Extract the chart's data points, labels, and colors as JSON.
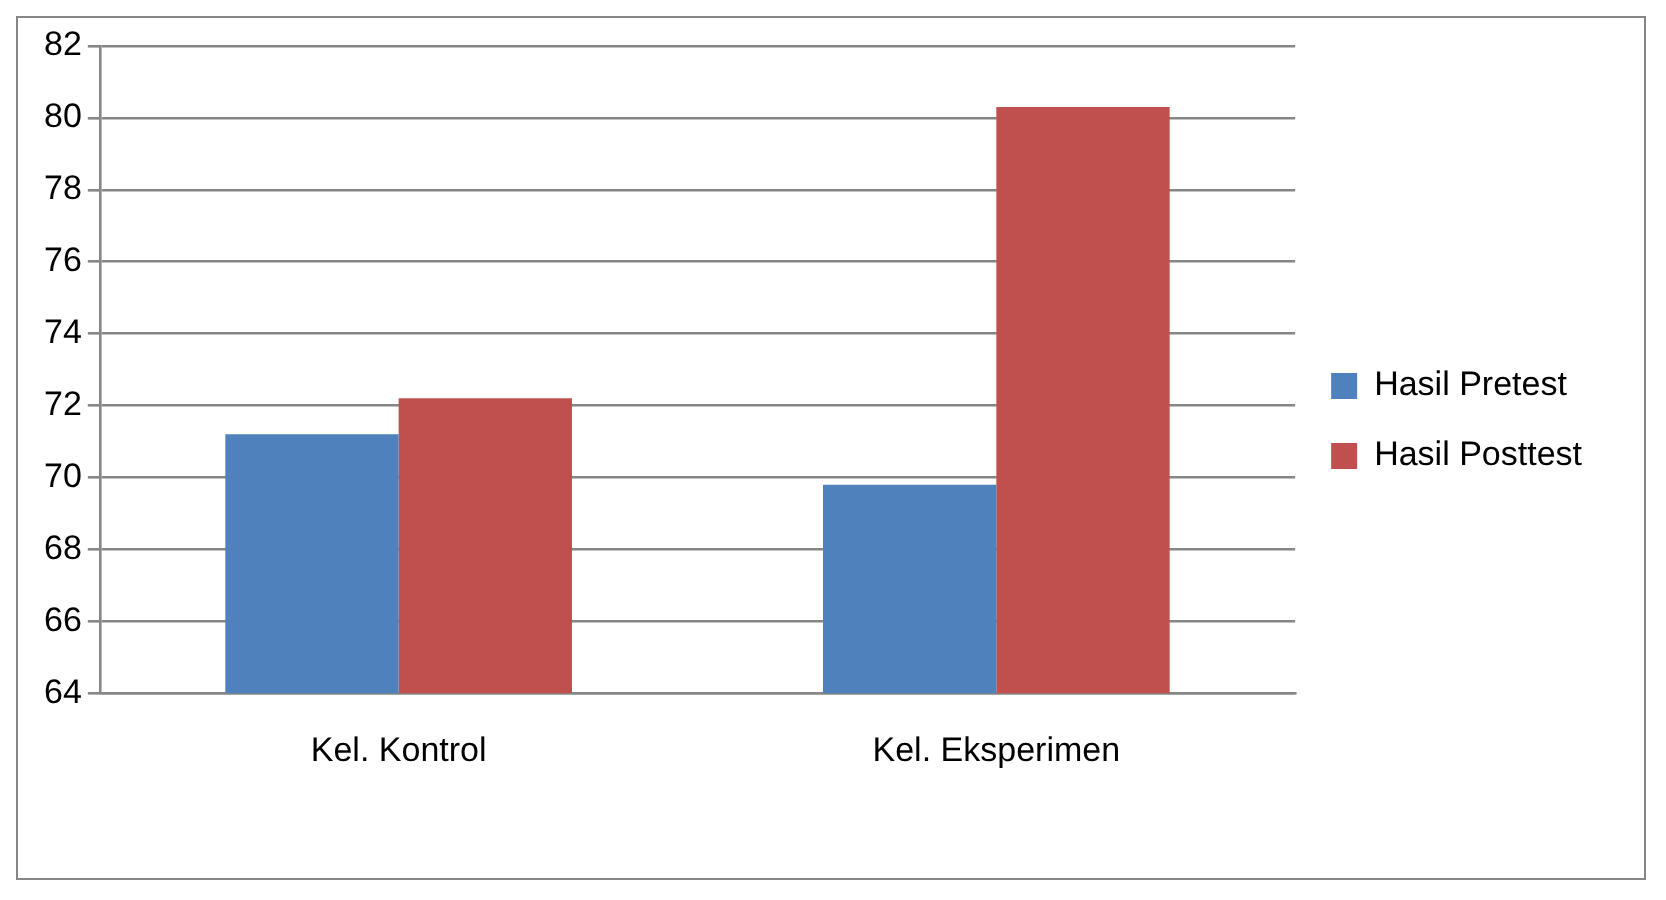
{
  "chart_data": {
    "type": "bar",
    "categories": [
      "Kel. Kontrol",
      "Kel. Eksperimen"
    ],
    "series": [
      {
        "name": "Hasil Pretest",
        "color": "#4f81bd",
        "values": [
          71.2,
          69.8
        ]
      },
      {
        "name": "Hasil Posttest",
        "color": "#c0504d",
        "values": [
          72.2,
          80.3
        ]
      }
    ],
    "ylim": [
      64,
      82
    ],
    "yticks": [
      64,
      66,
      68,
      70,
      72,
      74,
      76,
      78,
      80,
      82
    ],
    "grid": "y",
    "legend": "right"
  }
}
